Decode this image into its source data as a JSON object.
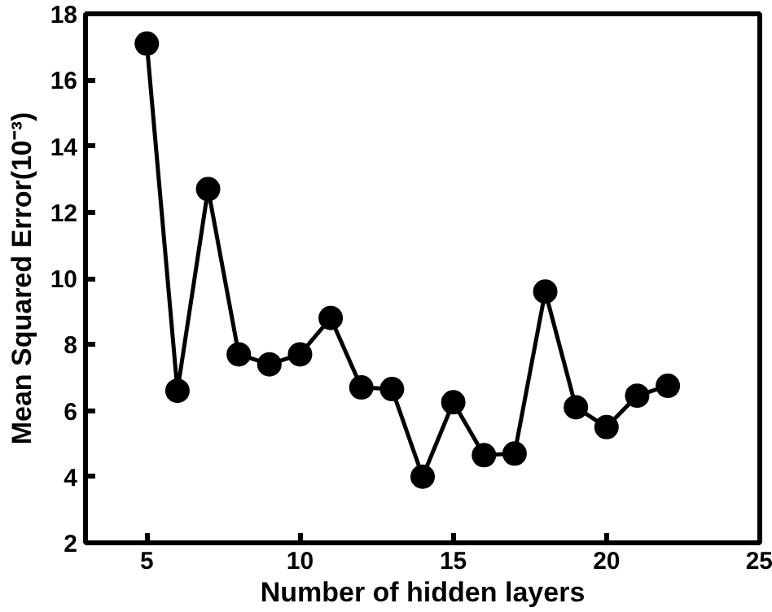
{
  "chart_data": {
    "type": "line",
    "xlabel": "Number of hidden layers",
    "ylabel": "Mean Squared Error(10⁻³)",
    "x": [
      5,
      6,
      7,
      8,
      9,
      10,
      11,
      12,
      13,
      14,
      15,
      16,
      17,
      18,
      19,
      20,
      21,
      22
    ],
    "series": [
      {
        "color": "#000000",
        "values": [
          17.1,
          6.6,
          12.7,
          7.7,
          7.4,
          7.7,
          8.8,
          6.7,
          6.65,
          4.0,
          6.25,
          4.65,
          4.7,
          9.6,
          6.1,
          5.5,
          6.45,
          6.75
        ]
      }
    ],
    "xlim": [
      3,
      25
    ],
    "ylim": [
      2,
      18
    ],
    "xticks": [
      5,
      10,
      15,
      20,
      25
    ],
    "yticks": [
      2,
      4,
      6,
      8,
      10,
      12,
      14,
      16,
      18
    ],
    "grid": false,
    "marker": "circle",
    "line_style": "solid"
  }
}
